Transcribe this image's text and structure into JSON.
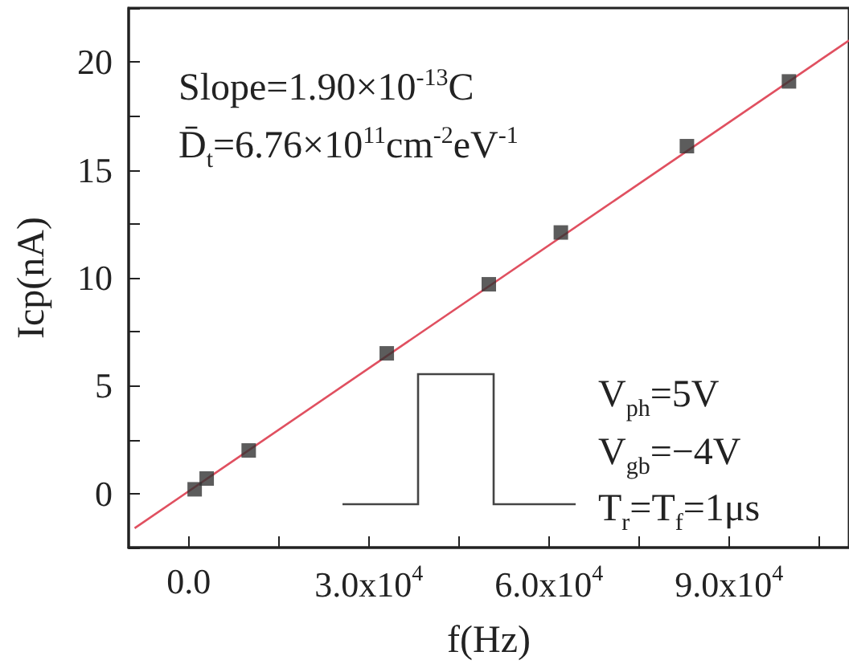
{
  "chart_data": {
    "type": "scatter",
    "xlabel": "f(Hz)",
    "ylabel": "Icp(nA)",
    "xlim": [
      -10000,
      110000
    ],
    "ylim": [
      -2.5,
      22.5
    ],
    "xticks": [
      {
        "value": 0,
        "label": "0.0"
      },
      {
        "value": 30000,
        "label": "3.0x10$^{4}$"
      },
      {
        "value": 60000,
        "label": "6.0x10$^{4}$"
      },
      {
        "value": 90000,
        "label": "9.0x10$^{4}$"
      }
    ],
    "yticks": [
      0,
      5,
      10,
      15,
      20
    ],
    "grid": false,
    "series": [
      {
        "marker": "square",
        "color": "#333333",
        "x": [
          1000,
          3000,
          10000,
          33000,
          50000,
          62000,
          83000,
          100000
        ],
        "values": [
          0.2,
          0.7,
          2.0,
          6.5,
          9.7,
          12.1,
          16.1,
          19.1
        ]
      },
      {
        "type": "line",
        "marker": "none",
        "color": "#e05060",
        "x": [
          -9000,
          110000
        ],
        "values": [
          -1.6,
          21.0
        ]
      }
    ],
    "annotations": [
      "Slope=1.90×10$^{-13}$C",
      "D̄$_{t}$=6.76×10$^{11}$cm$^{-2}$eV$^{-1}$",
      "V$_{ph}$=5V",
      "V$_{gb}$=−4V",
      "T$_{r}$=T$_{f}$=1μs"
    ]
  }
}
